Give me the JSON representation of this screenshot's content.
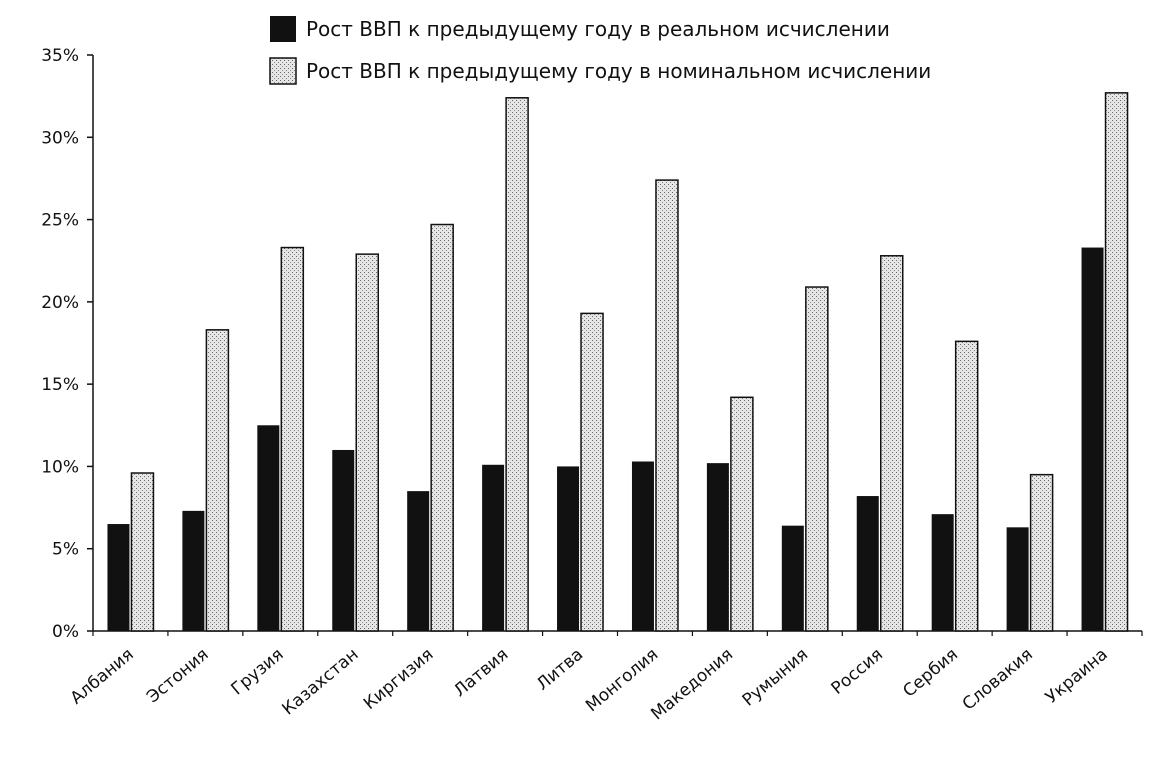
{
  "chart_data": {
    "type": "bar",
    "categories": [
      "Албания",
      "Эстония",
      "Грузия",
      "Казахстан",
      "Киргизия",
      "Латвия",
      "Литва",
      "Монголия",
      "Македония",
      "Румыния",
      "Россия",
      "Сербия",
      "Словакия",
      "Украина"
    ],
    "series": [
      {
        "name": "Рост ВВП к предыдущему году в реальном исчислении",
        "values": [
          6.5,
          7.3,
          12.5,
          11.0,
          8.5,
          10.1,
          10.0,
          10.3,
          10.2,
          6.4,
          8.2,
          7.1,
          6.3,
          23.3
        ],
        "color": "#111111",
        "pattern": "solid"
      },
      {
        "name": "Рост ВВП к предыдущему году в номинальном исчислении",
        "values": [
          9.6,
          18.3,
          23.3,
          22.9,
          24.7,
          32.4,
          19.3,
          27.4,
          14.2,
          20.9,
          22.8,
          17.6,
          9.5,
          32.7
        ],
        "color": "#cfcfcf",
        "pattern": "dotted"
      }
    ],
    "yticks": [
      "0%",
      "5%",
      "10%",
      "15%",
      "20%",
      "25%",
      "30%",
      "35%"
    ],
    "ylim": [
      0,
      35
    ],
    "title": "",
    "xlabel": "",
    "ylabel": "",
    "legend_position": "top-center",
    "grid": false
  }
}
